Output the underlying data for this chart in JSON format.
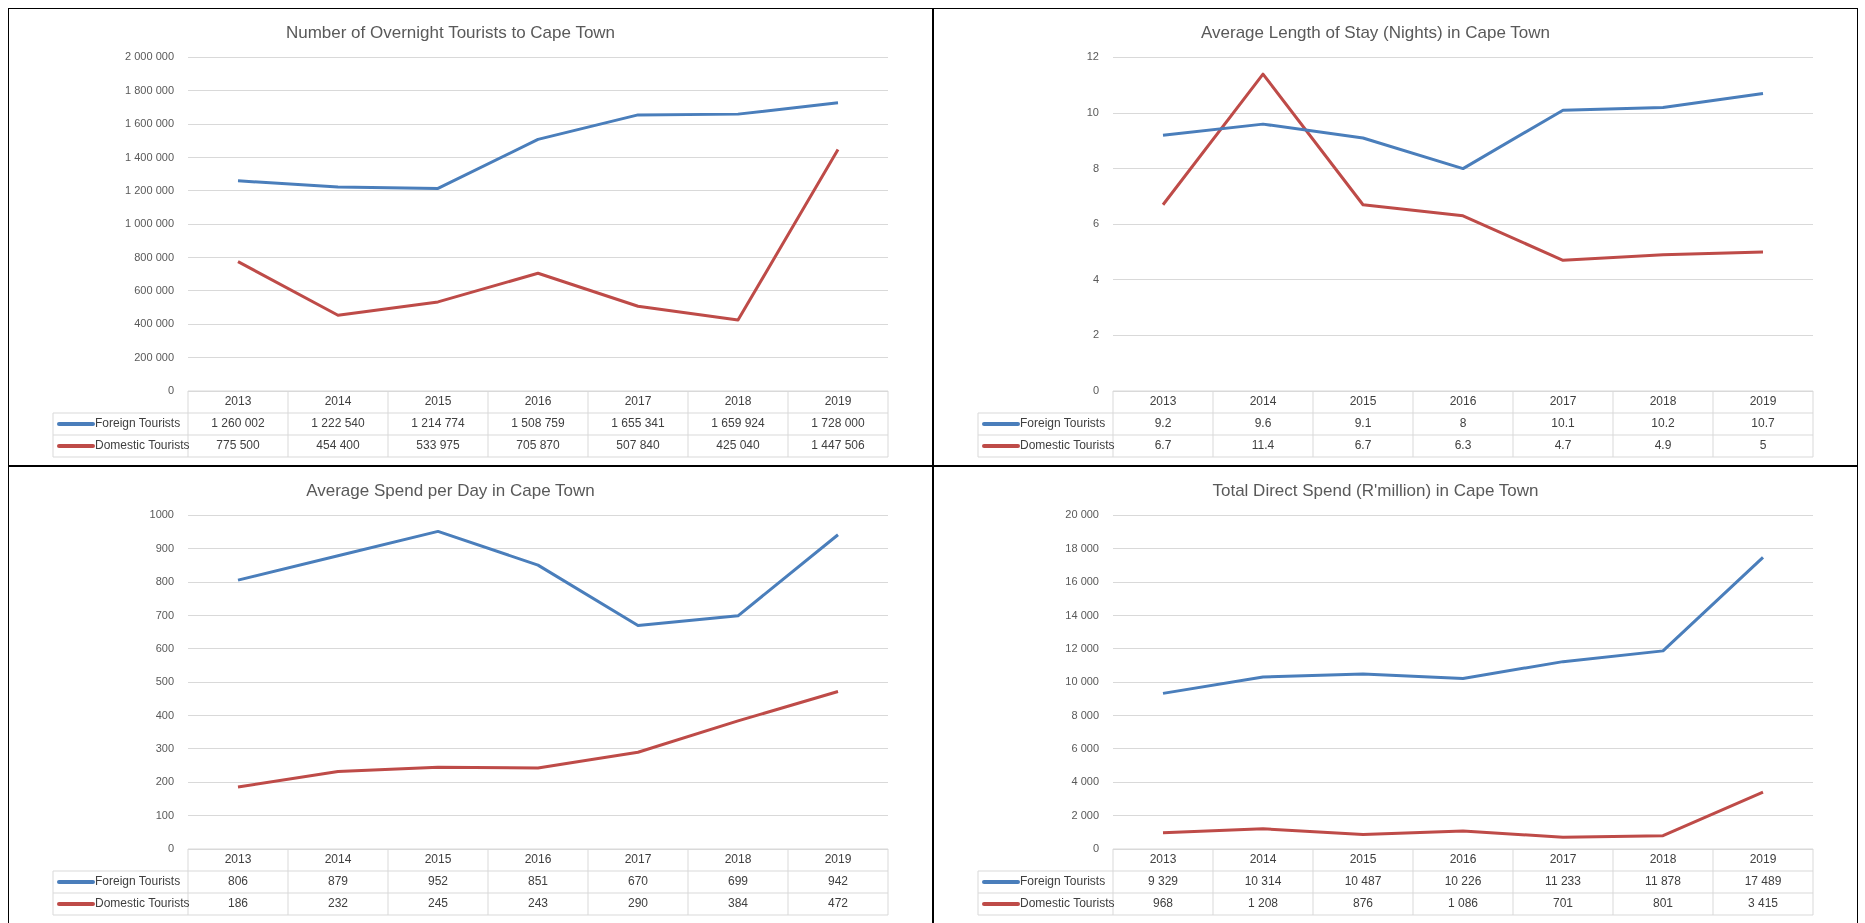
{
  "chart_data": [
    {
      "type": "line",
      "title": "Number of Overnight Tourists to Cape Town",
      "categories": [
        "2013",
        "2014",
        "2015",
        "2016",
        "2017",
        "2018",
        "2019"
      ],
      "series": [
        {
          "name": "Foreign Tourists",
          "color": "#4a7ebb",
          "values": [
            1260002,
            1222540,
            1214774,
            1508759,
            1655341,
            1659924,
            1728000
          ],
          "value_labels": [
            "1 260 002",
            "1 222 540",
            "1 214 774",
            "1 508 759",
            "1 655 341",
            "1 659 924",
            "1 728 000"
          ]
        },
        {
          "name": "Domestic Tourists",
          "color": "#be4b48",
          "values": [
            775500,
            454400,
            533975,
            705870,
            507840,
            425040,
            1447506
          ],
          "value_labels": [
            "775 500",
            "454 400",
            "533 975",
            "705 870",
            "507 840",
            "425 040",
            "1 447 506"
          ]
        }
      ],
      "ylim": [
        0,
        2000000
      ],
      "yticks": [
        0,
        {
          "value": 200000,
          "label": "200 000"
        },
        {
          "value": 400000,
          "label": "400 000"
        },
        {
          "value": 600000,
          "label": "600 000"
        },
        {
          "value": 800000,
          "label": "800 000"
        },
        {
          "value": 1000000,
          "label": "1 000 000"
        },
        {
          "value": 1200000,
          "label": "1 200 000"
        },
        {
          "value": 1400000,
          "label": "1 400 000"
        },
        {
          "value": 1600000,
          "label": "1 600 000"
        },
        {
          "value": 1800000,
          "label": "1 800 000"
        },
        {
          "value": 2000000,
          "label": "2 000 000"
        }
      ],
      "grid": "y",
      "legend": "bottom",
      "marker": "none",
      "line_style": "solid"
    },
    {
      "type": "line",
      "title": "Average Length of Stay (Nights) in Cape Town",
      "categories": [
        "2013",
        "2014",
        "2015",
        "2016",
        "2017",
        "2018",
        "2019"
      ],
      "series": [
        {
          "name": "Foreign Tourists",
          "color": "#4a7ebb",
          "values": [
            9.2,
            9.6,
            9.1,
            8,
            10.1,
            10.2,
            10.7
          ]
        },
        {
          "name": "Domestic Tourists",
          "color": "#be4b48",
          "values": [
            6.7,
            11.4,
            6.7,
            6.3,
            4.7,
            4.9,
            5
          ]
        }
      ],
      "ylim": [
        0,
        12
      ],
      "yticks": [
        0,
        2,
        4,
        6,
        8,
        10,
        12
      ],
      "data_labels": true,
      "grid": "y",
      "legend": "bottom",
      "marker": "none",
      "line_style": "solid"
    },
    {
      "type": "line",
      "title": "Average Spend per Day in Cape Town",
      "categories": [
        "2013",
        "2014",
        "2015",
        "2016",
        "2017",
        "2018",
        "2019"
      ],
      "series": [
        {
          "name": "Foreign Tourists",
          "color": "#4a7ebb",
          "values": [
            806,
            879,
            952,
            851,
            670,
            699,
            942
          ]
        },
        {
          "name": "Domestic Tourists",
          "color": "#be4b48",
          "values": [
            186,
            232,
            245,
            243,
            290,
            384,
            472
          ]
        }
      ],
      "ylim": [
        0,
        1000
      ],
      "yticks": [
        0,
        100,
        200,
        300,
        400,
        500,
        600,
        700,
        800,
        900,
        1000
      ],
      "data_labels": true,
      "grid": "y",
      "legend": "bottom",
      "marker": "none",
      "line_style": "solid"
    },
    {
      "type": "line",
      "title": "Total Direct Spend (R'million) in Cape Town",
      "categories": [
        "2013",
        "2014",
        "2015",
        "2016",
        "2017",
        "2018",
        "2019"
      ],
      "series": [
        {
          "name": "Foreign Tourists",
          "color": "#4a7ebb",
          "values": [
            9329,
            10314,
            10487,
            10226,
            11233,
            11878,
            17489
          ],
          "value_labels": [
            "9 329",
            "10 314",
            "10 487",
            "10 226",
            "11 233",
            "11 878",
            "17 489"
          ]
        },
        {
          "name": "Domestic Tourists",
          "color": "#be4b48",
          "values": [
            968,
            1208,
            876,
            1086,
            701,
            801,
            3415
          ],
          "value_labels": [
            "968",
            "1 208",
            "876",
            "1 086",
            "701",
            "801",
            "3 415"
          ]
        }
      ],
      "ylim": [
        0,
        20000
      ],
      "yticks": [
        0,
        {
          "value": 2000,
          "label": "2 000"
        },
        {
          "value": 4000,
          "label": "4 000"
        },
        {
          "value": 6000,
          "label": "6 000"
        },
        {
          "value": 8000,
          "label": "8 000"
        },
        {
          "value": 10000,
          "label": "10 000"
        },
        {
          "value": 12000,
          "label": "12 000"
        },
        {
          "value": 14000,
          "label": "14 000"
        },
        {
          "value": 16000,
          "label": "16 000"
        },
        {
          "value": 18000,
          "label": "18 000"
        },
        {
          "value": 20000,
          "label": "20 000"
        }
      ],
      "grid": "y",
      "legend": "bottom",
      "marker": "none",
      "line_style": "solid"
    }
  ]
}
